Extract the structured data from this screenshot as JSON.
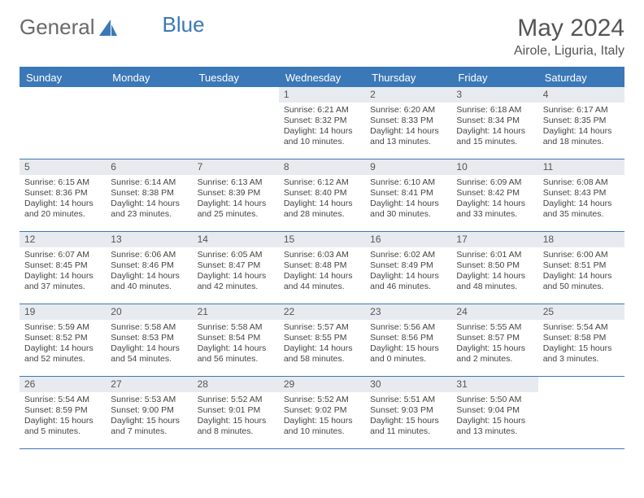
{
  "logo": {
    "text1": "General",
    "text2": "Blue"
  },
  "title": "May 2024",
  "subtitle": "Airole, Liguria, Italy",
  "colors": {
    "brand": "#3b78b8",
    "dayhead_bg": "#3b78b8",
    "dayhead_text": "#ffffff",
    "daynum_bg": "#e7eaee",
    "text": "#444444",
    "title_text": "#555555"
  },
  "day_names": [
    "Sunday",
    "Monday",
    "Tuesday",
    "Wednesday",
    "Thursday",
    "Friday",
    "Saturday"
  ],
  "weeks": [
    [
      {
        "n": "",
        "sunrise": "",
        "sunset": "",
        "daylight": ""
      },
      {
        "n": "",
        "sunrise": "",
        "sunset": "",
        "daylight": ""
      },
      {
        "n": "",
        "sunrise": "",
        "sunset": "",
        "daylight": ""
      },
      {
        "n": "1",
        "sunrise": "Sunrise: 6:21 AM",
        "sunset": "Sunset: 8:32 PM",
        "daylight": "Daylight: 14 hours and 10 minutes."
      },
      {
        "n": "2",
        "sunrise": "Sunrise: 6:20 AM",
        "sunset": "Sunset: 8:33 PM",
        "daylight": "Daylight: 14 hours and 13 minutes."
      },
      {
        "n": "3",
        "sunrise": "Sunrise: 6:18 AM",
        "sunset": "Sunset: 8:34 PM",
        "daylight": "Daylight: 14 hours and 15 minutes."
      },
      {
        "n": "4",
        "sunrise": "Sunrise: 6:17 AM",
        "sunset": "Sunset: 8:35 PM",
        "daylight": "Daylight: 14 hours and 18 minutes."
      }
    ],
    [
      {
        "n": "5",
        "sunrise": "Sunrise: 6:15 AM",
        "sunset": "Sunset: 8:36 PM",
        "daylight": "Daylight: 14 hours and 20 minutes."
      },
      {
        "n": "6",
        "sunrise": "Sunrise: 6:14 AM",
        "sunset": "Sunset: 8:38 PM",
        "daylight": "Daylight: 14 hours and 23 minutes."
      },
      {
        "n": "7",
        "sunrise": "Sunrise: 6:13 AM",
        "sunset": "Sunset: 8:39 PM",
        "daylight": "Daylight: 14 hours and 25 minutes."
      },
      {
        "n": "8",
        "sunrise": "Sunrise: 6:12 AM",
        "sunset": "Sunset: 8:40 PM",
        "daylight": "Daylight: 14 hours and 28 minutes."
      },
      {
        "n": "9",
        "sunrise": "Sunrise: 6:10 AM",
        "sunset": "Sunset: 8:41 PM",
        "daylight": "Daylight: 14 hours and 30 minutes."
      },
      {
        "n": "10",
        "sunrise": "Sunrise: 6:09 AM",
        "sunset": "Sunset: 8:42 PM",
        "daylight": "Daylight: 14 hours and 33 minutes."
      },
      {
        "n": "11",
        "sunrise": "Sunrise: 6:08 AM",
        "sunset": "Sunset: 8:43 PM",
        "daylight": "Daylight: 14 hours and 35 minutes."
      }
    ],
    [
      {
        "n": "12",
        "sunrise": "Sunrise: 6:07 AM",
        "sunset": "Sunset: 8:45 PM",
        "daylight": "Daylight: 14 hours and 37 minutes."
      },
      {
        "n": "13",
        "sunrise": "Sunrise: 6:06 AM",
        "sunset": "Sunset: 8:46 PM",
        "daylight": "Daylight: 14 hours and 40 minutes."
      },
      {
        "n": "14",
        "sunrise": "Sunrise: 6:05 AM",
        "sunset": "Sunset: 8:47 PM",
        "daylight": "Daylight: 14 hours and 42 minutes."
      },
      {
        "n": "15",
        "sunrise": "Sunrise: 6:03 AM",
        "sunset": "Sunset: 8:48 PM",
        "daylight": "Daylight: 14 hours and 44 minutes."
      },
      {
        "n": "16",
        "sunrise": "Sunrise: 6:02 AM",
        "sunset": "Sunset: 8:49 PM",
        "daylight": "Daylight: 14 hours and 46 minutes."
      },
      {
        "n": "17",
        "sunrise": "Sunrise: 6:01 AM",
        "sunset": "Sunset: 8:50 PM",
        "daylight": "Daylight: 14 hours and 48 minutes."
      },
      {
        "n": "18",
        "sunrise": "Sunrise: 6:00 AM",
        "sunset": "Sunset: 8:51 PM",
        "daylight": "Daylight: 14 hours and 50 minutes."
      }
    ],
    [
      {
        "n": "19",
        "sunrise": "Sunrise: 5:59 AM",
        "sunset": "Sunset: 8:52 PM",
        "daylight": "Daylight: 14 hours and 52 minutes."
      },
      {
        "n": "20",
        "sunrise": "Sunrise: 5:58 AM",
        "sunset": "Sunset: 8:53 PM",
        "daylight": "Daylight: 14 hours and 54 minutes."
      },
      {
        "n": "21",
        "sunrise": "Sunrise: 5:58 AM",
        "sunset": "Sunset: 8:54 PM",
        "daylight": "Daylight: 14 hours and 56 minutes."
      },
      {
        "n": "22",
        "sunrise": "Sunrise: 5:57 AM",
        "sunset": "Sunset: 8:55 PM",
        "daylight": "Daylight: 14 hours and 58 minutes."
      },
      {
        "n": "23",
        "sunrise": "Sunrise: 5:56 AM",
        "sunset": "Sunset: 8:56 PM",
        "daylight": "Daylight: 15 hours and 0 minutes."
      },
      {
        "n": "24",
        "sunrise": "Sunrise: 5:55 AM",
        "sunset": "Sunset: 8:57 PM",
        "daylight": "Daylight: 15 hours and 2 minutes."
      },
      {
        "n": "25",
        "sunrise": "Sunrise: 5:54 AM",
        "sunset": "Sunset: 8:58 PM",
        "daylight": "Daylight: 15 hours and 3 minutes."
      }
    ],
    [
      {
        "n": "26",
        "sunrise": "Sunrise: 5:54 AM",
        "sunset": "Sunset: 8:59 PM",
        "daylight": "Daylight: 15 hours and 5 minutes."
      },
      {
        "n": "27",
        "sunrise": "Sunrise: 5:53 AM",
        "sunset": "Sunset: 9:00 PM",
        "daylight": "Daylight: 15 hours and 7 minutes."
      },
      {
        "n": "28",
        "sunrise": "Sunrise: 5:52 AM",
        "sunset": "Sunset: 9:01 PM",
        "daylight": "Daylight: 15 hours and 8 minutes."
      },
      {
        "n": "29",
        "sunrise": "Sunrise: 5:52 AM",
        "sunset": "Sunset: 9:02 PM",
        "daylight": "Daylight: 15 hours and 10 minutes."
      },
      {
        "n": "30",
        "sunrise": "Sunrise: 5:51 AM",
        "sunset": "Sunset: 9:03 PM",
        "daylight": "Daylight: 15 hours and 11 minutes."
      },
      {
        "n": "31",
        "sunrise": "Sunrise: 5:50 AM",
        "sunset": "Sunset: 9:04 PM",
        "daylight": "Daylight: 15 hours and 13 minutes."
      },
      {
        "n": "",
        "sunrise": "",
        "sunset": "",
        "daylight": ""
      }
    ]
  ]
}
